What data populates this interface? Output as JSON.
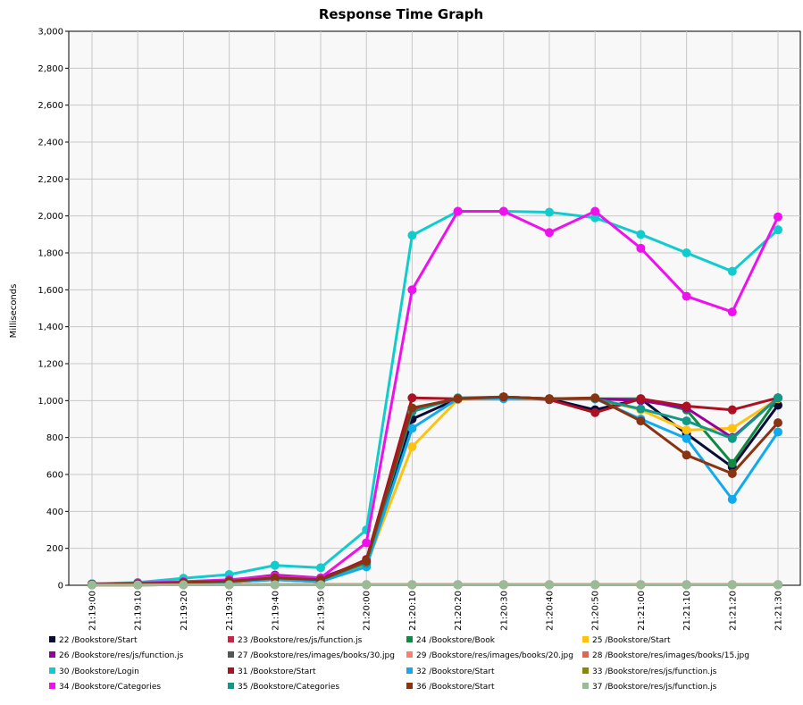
{
  "chart_data": {
    "type": "line",
    "title": "Response Time Graph",
    "xlabel": "",
    "ylabel": "Milliseconds",
    "ylim": [
      0,
      3000
    ],
    "yticks": [
      0,
      200,
      400,
      600,
      800,
      1000,
      1200,
      1400,
      1600,
      1800,
      2000,
      2200,
      2400,
      2600,
      2800,
      3000
    ],
    "ytick_labels": [
      "0",
      "200",
      "400",
      "600",
      "800",
      "1,000",
      "1,200",
      "1,400",
      "1,600",
      "1,800",
      "2,000",
      "2,200",
      "2,400",
      "2,600",
      "2,800",
      "3,000"
    ],
    "grid": true,
    "legend_position": "bottom",
    "categories": [
      "21:19:00",
      "21:19:10",
      "21:19:20",
      "21:19:30",
      "21:19:40",
      "21:19:50",
      "21:20:00",
      "21:20:10",
      "21:20:20",
      "21:20:30",
      "21:20:40",
      "21:20:50",
      "21:21:00",
      "21:21:10",
      "21:21:20",
      "21:21:30"
    ],
    "series": [
      {
        "name": "22 /Bookstore/Start",
        "color": "#0b0b3b",
        "values": [
          5,
          8,
          12,
          18,
          30,
          20,
          110,
          900,
          1010,
          1020,
          1010,
          950,
          1010,
          820,
          640,
          975
        ]
      },
      {
        "name": "23 /Bookstore/res/js/function.js",
        "color": "#cc2244",
        "values": [
          2,
          2,
          3,
          3,
          3,
          3,
          3,
          3,
          3,
          3,
          3,
          3,
          3,
          3,
          3,
          3
        ]
      },
      {
        "name": "24 /Bookstore/Book",
        "color": "#118844",
        "values": [
          5,
          8,
          15,
          20,
          35,
          25,
          120,
          960,
          1010,
          1020,
          1010,
          1010,
          1010,
          950,
          660,
          1015
        ]
      },
      {
        "name": "25 /Bookstore/Start",
        "color": "#ffc20e",
        "values": [
          5,
          8,
          12,
          18,
          30,
          20,
          110,
          750,
          1005,
          1020,
          1010,
          1010,
          950,
          840,
          850,
          1010
        ]
      },
      {
        "name": "26 /Bookstore/res/js/function.js",
        "color": "#990099",
        "values": [
          8,
          10,
          18,
          28,
          55,
          40,
          130,
          950,
          1010,
          1020,
          1010,
          1010,
          1000,
          960,
          800,
          1015
        ]
      },
      {
        "name": "27 /Bookstore/res/images/books/30.jpg",
        "color": "#555555",
        "values": [
          2,
          2,
          3,
          3,
          3,
          3,
          3,
          3,
          3,
          3,
          3,
          3,
          3,
          3,
          3,
          3
        ]
      },
      {
        "name": "28 /Bookstore/res/images/books/15.jpg",
        "color": "#dd6655",
        "values": [
          2,
          2,
          3,
          3,
          3,
          3,
          3,
          3,
          3,
          3,
          3,
          3,
          3,
          3,
          3,
          3
        ]
      },
      {
        "name": "29 /Bookstore/res/images/books/20.jpg",
        "color": "#ff7f6e",
        "values": [
          2,
          2,
          3,
          3,
          3,
          3,
          3,
          3,
          3,
          3,
          3,
          3,
          3,
          3,
          3,
          3
        ]
      },
      {
        "name": "30 /Bookstore/Login",
        "color": "#11cccc",
        "values": [
          8,
          15,
          38,
          58,
          108,
          95,
          300,
          1895,
          2025,
          2025,
          2020,
          1990,
          1900,
          1800,
          1700,
          1925
        ]
      },
      {
        "name": "31 /Bookstore/Start",
        "color": "#aa1122",
        "values": [
          5,
          8,
          15,
          22,
          40,
          30,
          140,
          1015,
          1010,
          1020,
          1005,
          935,
          1010,
          970,
          950,
          1015
        ]
      },
      {
        "name": "32 /Bookstore/Start",
        "color": "#11aaee",
        "values": [
          5,
          8,
          12,
          18,
          30,
          20,
          100,
          850,
          1010,
          1010,
          1010,
          1010,
          900,
          795,
          465,
          830
        ]
      },
      {
        "name": "33 /Bookstore/res/js/function.js",
        "color": "#888800",
        "values": [
          2,
          2,
          3,
          3,
          3,
          3,
          3,
          3,
          3,
          3,
          3,
          3,
          3,
          3,
          3,
          3
        ]
      },
      {
        "name": "34 /Bookstore/Categories",
        "color": "#ee11ee",
        "values": [
          5,
          12,
          20,
          30,
          50,
          40,
          230,
          1600,
          2025,
          2025,
          1910,
          2025,
          1825,
          1565,
          1480,
          1995
        ]
      },
      {
        "name": "35 /Bookstore/Categories",
        "color": "#119988",
        "values": [
          5,
          8,
          15,
          22,
          40,
          30,
          120,
          940,
          1015,
          1020,
          1010,
          1010,
          955,
          890,
          795,
          1015
        ]
      },
      {
        "name": "36 /Bookstore/Start",
        "color": "#883311",
        "values": [
          5,
          8,
          15,
          22,
          40,
          30,
          130,
          960,
          1010,
          1020,
          1010,
          1015,
          890,
          705,
          605,
          880
        ]
      },
      {
        "name": "37 /Bookstore/res/js/function.js",
        "color": "#99bb99",
        "values": [
          2,
          2,
          3,
          3,
          3,
          3,
          3,
          3,
          3,
          3,
          3,
          3,
          3,
          3,
          3,
          3
        ]
      }
    ]
  }
}
